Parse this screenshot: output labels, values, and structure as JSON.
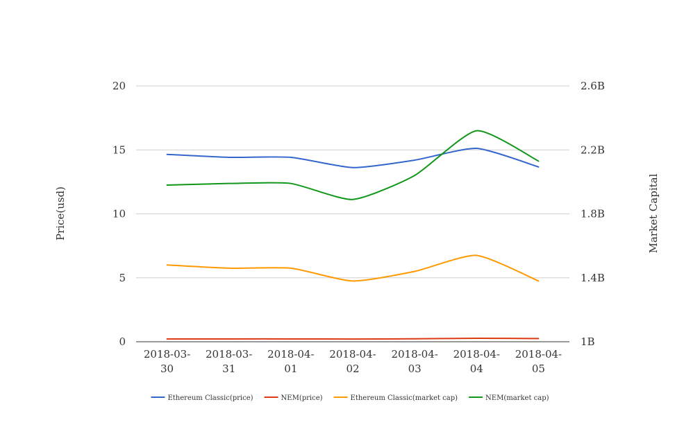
{
  "chart_data": {
    "type": "line",
    "categories": [
      "2018-03-30",
      "2018-03-31",
      "2018-04-01",
      "2018-04-02",
      "2018-04-03",
      "2018-04-04",
      "2018-04-05"
    ],
    "category_label_lines": [
      [
        "2018-03-",
        "30"
      ],
      [
        "2018-03-",
        "31"
      ],
      [
        "2018-04-",
        "01"
      ],
      [
        "2018-04-",
        "02"
      ],
      [
        "2018-04-",
        "03"
      ],
      [
        "2018-04-",
        "04"
      ],
      [
        "2018-04-",
        "05"
      ]
    ],
    "ylabel": "Price(usd)",
    "y2label": "Market Capital",
    "ylim": [
      0,
      20
    ],
    "y2lim": [
      1000000000,
      2600000000
    ],
    "yticks": [
      0,
      5,
      10,
      15,
      20
    ],
    "yticks_labels": [
      "0",
      "5",
      "10",
      "15",
      "20"
    ],
    "y2ticks": [
      1000000000,
      1400000000,
      1800000000,
      2200000000,
      2600000000
    ],
    "y2ticks_labels": [
      "1B",
      "1.4B",
      "1.8B",
      "2.2B",
      "2.6B"
    ],
    "grid": true,
    "legend_position": "bottom",
    "series": [
      {
        "name": "Ethereum Classic(price)",
        "axis": "left",
        "color": "#3366cc",
        "values": [
          14.65,
          14.42,
          14.42,
          13.62,
          14.2,
          15.12,
          13.67
        ]
      },
      {
        "name": "NEM(price)",
        "axis": "left",
        "color": "#dc3912",
        "values": [
          0.22,
          0.22,
          0.22,
          0.21,
          0.23,
          0.27,
          0.25
        ]
      },
      {
        "name": "Ethereum Classic(market cap)",
        "axis": "right",
        "color": "#ff9900",
        "values": [
          1480000000,
          1460000000,
          1460000000,
          1380000000,
          1440000000,
          1540000000,
          1380000000
        ]
      },
      {
        "name": "NEM(market cap)",
        "axis": "right",
        "color": "#109618",
        "values": [
          1980000000,
          1990000000,
          1990000000,
          1890000000,
          2040000000,
          2320000000,
          2130000000
        ]
      }
    ]
  }
}
